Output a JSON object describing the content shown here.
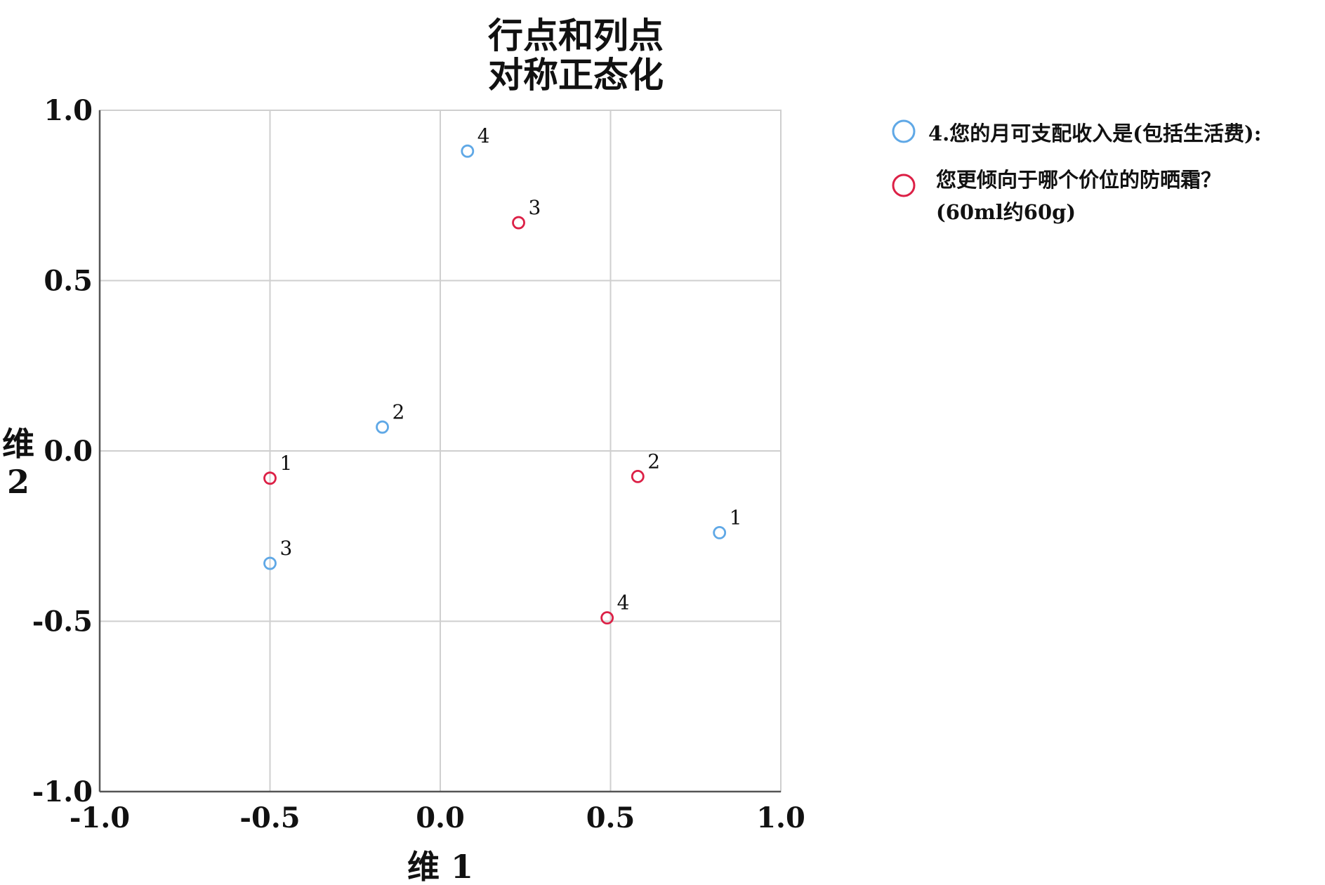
{
  "chart_data": {
    "type": "scatter",
    "title": [
      "行点和列点",
      "对称正态化"
    ],
    "xlabel": "维 1",
    "ylabel": [
      "维",
      "2"
    ],
    "xlim": [
      -1.0,
      1.0
    ],
    "ylim": [
      -1.0,
      1.0
    ],
    "xticks": [
      "-1.0",
      "-0.5",
      "0.0",
      "0.5",
      "1.0"
    ],
    "yticks": [
      "1.0",
      "0.5",
      "0.0",
      "-0.5",
      "-1.0"
    ],
    "grid": true,
    "legend_position": "right",
    "series": [
      {
        "name": "4.您的月可支配收入是(包括生活费):",
        "color": "#5fa8e6",
        "points": [
          {
            "label": "1",
            "x": 0.82,
            "y": -0.24
          },
          {
            "label": "2",
            "x": -0.17,
            "y": 0.07
          },
          {
            "label": "3",
            "x": -0.5,
            "y": -0.33
          },
          {
            "label": "4",
            "x": 0.08,
            "y": 0.88
          }
        ]
      },
      {
        "name": [
          "您更倾向于哪个价位的防晒霜？",
          "(60ml约60g)"
        ],
        "color": "#dc2046",
        "points": [
          {
            "label": "1",
            "x": -0.5,
            "y": -0.08
          },
          {
            "label": "2",
            "x": 0.58,
            "y": -0.075
          },
          {
            "label": "3",
            "x": 0.23,
            "y": 0.67
          },
          {
            "label": "4",
            "x": 0.49,
            "y": -0.49
          }
        ]
      }
    ]
  }
}
